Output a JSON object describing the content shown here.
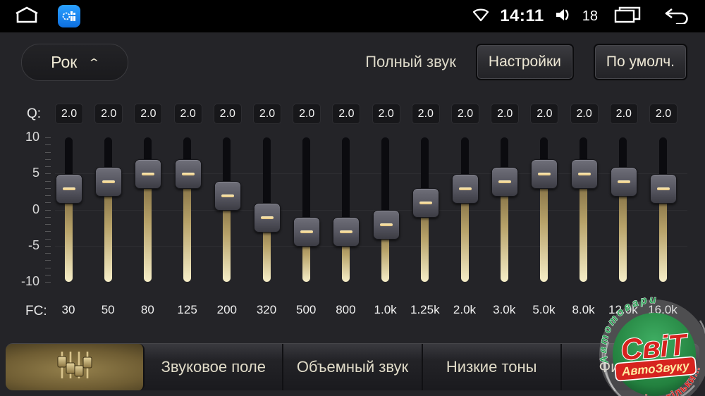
{
  "status_bar": {
    "time": "14:11",
    "volume_level": "18",
    "icons": [
      "home-icon",
      "equalizer-app-icon",
      "wifi-icon",
      "speaker-icon",
      "recent-apps-icon",
      "back-icon"
    ]
  },
  "header": {
    "preset_value": "Рок",
    "mode_label": "Полный звук",
    "settings_button": "Настройки",
    "default_button": "По умолч."
  },
  "equalizer": {
    "q_label": "Q:",
    "fc_label": "FC:",
    "axis_labels": [
      10,
      5,
      0,
      -5,
      -10
    ],
    "gain_range": [
      -10,
      10
    ],
    "gridline_values": [
      5,
      0,
      -5
    ],
    "bands": [
      {
        "freq": "30",
        "q": "2.0",
        "gain": 3
      },
      {
        "freq": "50",
        "q": "2.0",
        "gain": 4
      },
      {
        "freq": "80",
        "q": "2.0",
        "gain": 5
      },
      {
        "freq": "125",
        "q": "2.0",
        "gain": 5
      },
      {
        "freq": "200",
        "q": "2.0",
        "gain": 2
      },
      {
        "freq": "320",
        "q": "2.0",
        "gain": -1
      },
      {
        "freq": "500",
        "q": "2.0",
        "gain": -3
      },
      {
        "freq": "800",
        "q": "2.0",
        "gain": -3
      },
      {
        "freq": "1.0k",
        "q": "2.0",
        "gain": -2
      },
      {
        "freq": "1.25k",
        "q": "2.0",
        "gain": 1
      },
      {
        "freq": "2.0k",
        "q": "2.0",
        "gain": 3
      },
      {
        "freq": "3.0k",
        "q": "2.0",
        "gain": 4
      },
      {
        "freq": "5.0k",
        "q": "2.0",
        "gain": 5
      },
      {
        "freq": "8.0k",
        "q": "2.0",
        "gain": 5
      },
      {
        "freq": "12.0k",
        "q": "2.0",
        "gain": 4
      },
      {
        "freq": "16.0k",
        "q": "2.0",
        "gain": 3
      }
    ]
  },
  "tabs": [
    {
      "label": "",
      "icon": "equalizer-sliders-icon",
      "active": true
    },
    {
      "label": "Звуковое поле",
      "active": false
    },
    {
      "label": "Объемный звук",
      "active": false
    },
    {
      "label": "Низкие тоны",
      "active": false
    },
    {
      "label": "Фильтры",
      "active": false
    }
  ],
  "watermark": {
    "arc_top": "Автотовари",
    "title": "СвіТ",
    "band": "АвтоЗвуку",
    "arc_bottom": "і не тільки..."
  },
  "colors": {
    "background": "#242428",
    "status_bar": "#000000",
    "gold_track": "#f6eec8",
    "thumb_dash": "#f3dfa2",
    "active_tab_gold": "#8c7845",
    "app_icon_blue": "#1f8efc",
    "logo_green": "#2f9e57",
    "logo_red": "#d6231f"
  }
}
